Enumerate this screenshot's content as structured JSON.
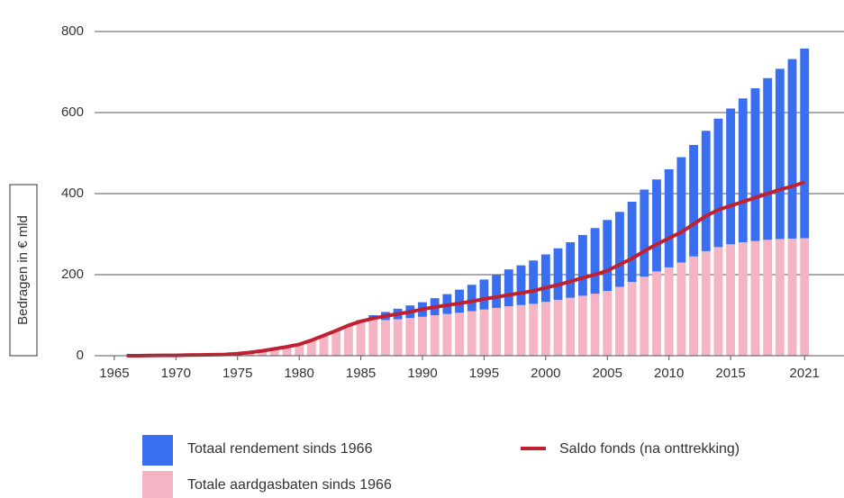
{
  "chart_data": {
    "type": "stacked_bar_line",
    "y_label": "Bedragen in € mld",
    "x": [
      1966,
      1967,
      1968,
      1969,
      1970,
      1971,
      1972,
      1973,
      1974,
      1975,
      1976,
      1977,
      1978,
      1979,
      1980,
      1981,
      1982,
      1983,
      1984,
      1985,
      1986,
      1987,
      1988,
      1989,
      1990,
      1991,
      1992,
      1993,
      1994,
      1995,
      1996,
      1997,
      1998,
      1999,
      2000,
      2001,
      2002,
      2003,
      2004,
      2005,
      2006,
      2007,
      2008,
      2009,
      2010,
      2011,
      2012,
      2013,
      2014,
      2015,
      2016,
      2017,
      2018,
      2019,
      2020,
      2021
    ],
    "series": [
      {
        "name": "Totaal rendement sinds 1966",
        "color": "#3a6ef0",
        "kind": "bar",
        "values": [
          0,
          0,
          0,
          0,
          0,
          0,
          0,
          0,
          0,
          0,
          0,
          0,
          0,
          0,
          0,
          0,
          0,
          0,
          0,
          3,
          10,
          20,
          26,
          31,
          36,
          42,
          49,
          57,
          65,
          74,
          82,
          91,
          98,
          107,
          117,
          127,
          137,
          150,
          162,
          175,
          185,
          198,
          215,
          227,
          242,
          260,
          275,
          297,
          317,
          335,
          355,
          377,
          399,
          420,
          443,
          468
        ]
      },
      {
        "name": "Totale aardgasbaten sinds 1966",
        "color": "#f4b4c3",
        "kind": "bar",
        "values": [
          0.2,
          0.5,
          1,
          1.5,
          2,
          2.5,
          3,
          3.5,
          4,
          5,
          8,
          12,
          17,
          22,
          30,
          40,
          50,
          62,
          75,
          85,
          90,
          88,
          90,
          93,
          96,
          100,
          103,
          106,
          110,
          114,
          118,
          122,
          125,
          128,
          133,
          138,
          143,
          148,
          153,
          160,
          170,
          182,
          195,
          208,
          218,
          230,
          245,
          258,
          268,
          275,
          280,
          283,
          286,
          288,
          289,
          290
        ]
      },
      {
        "name": "Saldo fonds (na onttrekking)",
        "color": "#c0202f",
        "kind": "line",
        "values": [
          0,
          0,
          0.5,
          1,
          1,
          1.5,
          2,
          2.5,
          3,
          5,
          8,
          12,
          17,
          22,
          28,
          38,
          50,
          62,
          75,
          85,
          92,
          98,
          103,
          108,
          115,
          120,
          125,
          129,
          134,
          140,
          145,
          150,
          155,
          160,
          168,
          175,
          183,
          192,
          200,
          210,
          225,
          240,
          258,
          275,
          290,
          305,
          325,
          345,
          360,
          370,
          380,
          390,
          400,
          410,
          418,
          428
        ]
      }
    ],
    "xlim": [
      1963.4,
      2024.2
    ],
    "xticks": [
      1965,
      1970,
      1975,
      1980,
      1985,
      1990,
      1995,
      2000,
      2005,
      2010,
      2015,
      2021
    ],
    "ylim": [
      0,
      800
    ],
    "yticks": [
      0,
      200,
      400,
      600,
      800
    ],
    "grid": true
  }
}
